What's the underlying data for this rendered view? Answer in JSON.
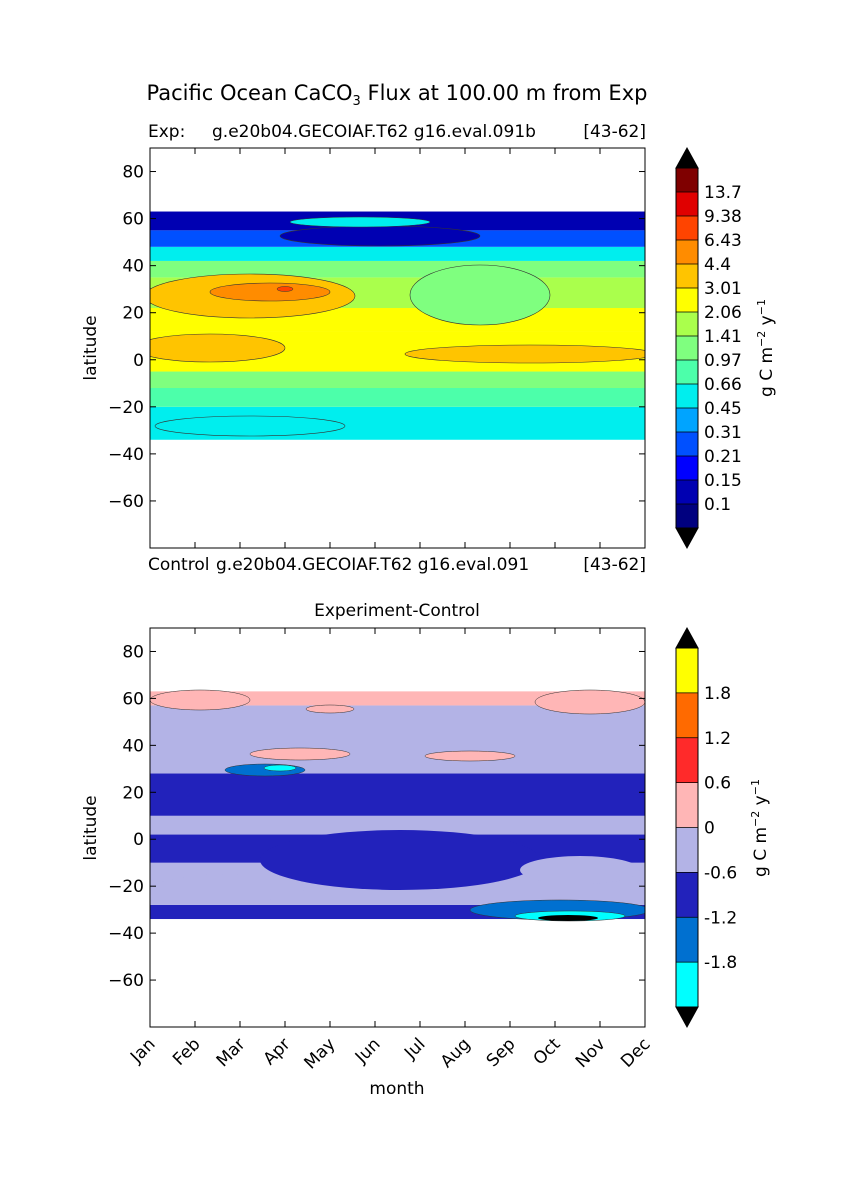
{
  "figure": {
    "title_main": "Pacific Ocean CaCO",
    "title_sub": "3",
    "title_rest": " Flux at 100.00 m from Exp"
  },
  "chart_data": [
    {
      "type": "heatmap",
      "title_left": "Exp:",
      "title_mid": "g.e20b04.GECOIAF.T62 g16.eval.091b",
      "title_right": "[43-62]",
      "xlabel": "",
      "ylabel": "latitude",
      "ylim": [
        -80,
        90
      ],
      "yticks": [
        80,
        60,
        40,
        20,
        0,
        -20,
        -40,
        -60
      ],
      "data_lat_range": [
        -34,
        63
      ],
      "colorbar": {
        "label": "g C m^-2 y^-1",
        "label_parts": [
          "g C m",
          "−2",
          " y",
          "−1"
        ],
        "levels": [
          "0.1",
          "0.15",
          "0.21",
          "0.31",
          "0.45",
          "0.66",
          "0.97",
          "1.41",
          "2.06",
          "3.01",
          "4.4",
          "6.43",
          "9.38",
          "13.7"
        ],
        "colors": [
          "#00007f",
          "#0000b2",
          "#0000ff",
          "#0050ff",
          "#00a4ff",
          "#00eeee",
          "#4cffaa",
          "#7fff7f",
          "#aaff4c",
          "#ffff00",
          "#ffc400",
          "#ff8c00",
          "#ff4400",
          "#e00000",
          "#7f0000"
        ],
        "extend": "both",
        "under_color": "#000000",
        "over_color": "#000000"
      },
      "bands": [
        {
          "lat": [
            -34,
            -20
          ],
          "level": 5
        },
        {
          "lat": [
            -20,
            -12
          ],
          "level": 6
        },
        {
          "lat": [
            -12,
            -5
          ],
          "level": 7
        },
        {
          "lat": [
            -5,
            12
          ],
          "level": 9
        },
        {
          "lat": [
            12,
            22
          ],
          "level": 9
        },
        {
          "lat": [
            22,
            35
          ],
          "level": 8
        },
        {
          "lat": [
            35,
            42
          ],
          "level": 7
        },
        {
          "lat": [
            42,
            48
          ],
          "level": 5
        },
        {
          "lat": [
            48,
            55
          ],
          "level": 3
        },
        {
          "lat": [
            55,
            63
          ],
          "level": 1
        }
      ]
    },
    {
      "type": "heatmap",
      "title_left": "Control",
      "title_mid": "g.e20b04.GECOIAF.T62 g16.eval.091",
      "title_right": "[43-62]",
      "title_center": "Experiment-Control",
      "xlabel": "month",
      "ylabel": "latitude",
      "ylim": [
        -80,
        90
      ],
      "yticks": [
        80,
        60,
        40,
        20,
        0,
        -20,
        -40,
        -60
      ],
      "categories": [
        "Jan",
        "Feb",
        "Mar",
        "Apr",
        "May",
        "Jun",
        "Jul",
        "Aug",
        "Sep",
        "Oct",
        "Nov",
        "Dec"
      ],
      "data_lat_range": [
        -34,
        63
      ],
      "colorbar": {
        "label": "g C m^-2 y^-1",
        "label_parts": [
          "g C m",
          "−2",
          " y",
          "−1"
        ],
        "levels": [
          "-1.8",
          "-1.2",
          "-0.6",
          "0",
          "0.6",
          "1.2",
          "1.8"
        ],
        "colors": [
          "#00ffff",
          "#0070d0",
          "#2222bb",
          "#b3b3e6",
          "#ffb6b6",
          "#ff2a2a",
          "#ff6a00",
          "#ffff00"
        ],
        "extend": "both",
        "under_color": "#000000",
        "over_color": "#000000"
      },
      "bands": [
        {
          "lat": [
            -34,
            -28
          ],
          "level": 2
        },
        {
          "lat": [
            -28,
            -10
          ],
          "level": 3
        },
        {
          "lat": [
            -10,
            2
          ],
          "level": 2
        },
        {
          "lat": [
            2,
            10
          ],
          "level": 3
        },
        {
          "lat": [
            10,
            28
          ],
          "level": 2
        },
        {
          "lat": [
            28,
            57
          ],
          "level": 3
        },
        {
          "lat": [
            57,
            63
          ],
          "level": 4
        }
      ]
    }
  ]
}
